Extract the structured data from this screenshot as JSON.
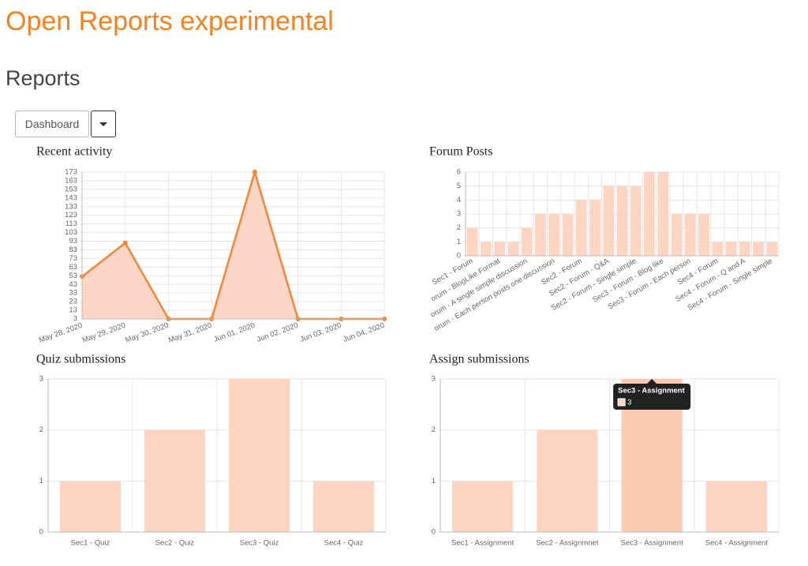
{
  "header": {
    "title": "Open Reports experimental",
    "subtitle": "Reports"
  },
  "dropdown": {
    "label": "Dashboard"
  },
  "chart_data": [
    {
      "type": "line",
      "title": "Recent activity",
      "categories": [
        "May 28, 2020",
        "May 29, 2020",
        "May 30, 2020",
        "May 31, 2020",
        "Jun 01, 2020",
        "Jun 02, 2020",
        "Jun 03, 2020",
        "Jun 04, 2020"
      ],
      "values": [
        52,
        91,
        3,
        3,
        173,
        3,
        3,
        3
      ],
      "color": "#f58536",
      "fill": "#fbd0bd",
      "ylim": [
        3,
        173
      ],
      "yticks": [
        3,
        13,
        23,
        33,
        43,
        53,
        63,
        73,
        83,
        93,
        103,
        113,
        123,
        133,
        143,
        153,
        163,
        173
      ],
      "grid": true
    },
    {
      "type": "bar",
      "title": "Forum Posts",
      "categories": [
        "Sec1 - Forum",
        null,
        "orum - BlogLike Format",
        null,
        "orum - A single simple discussion",
        null,
        "orum - Each person posts one discussion",
        null,
        "Sec2 - Forum",
        null,
        "Sec2 - Forum - Q&A",
        null,
        "Sec2 - Forum - Single simple",
        null,
        "Sec3 - Forum - Blog like",
        null,
        "Sec3 - Forum - Each person",
        null,
        "Sec4 - Forum",
        null,
        "Sec4 - Forum - Q and A",
        null,
        "Sec4 - Forum - Single simple"
      ],
      "values": [
        2,
        1,
        1,
        1,
        2,
        3,
        3,
        3,
        4,
        4,
        5,
        5,
        5,
        6,
        6,
        3,
        3,
        3,
        1,
        1,
        1,
        1,
        1
      ],
      "color": "#fdd5c2",
      "ylim": [
        0,
        6
      ],
      "yticks": [
        0,
        1,
        2,
        3,
        4,
        5,
        6
      ],
      "grid": true
    },
    {
      "type": "bar",
      "title": "Quiz submissions",
      "categories": [
        "Sec1 - Quiz",
        "Sec2 - Quiz",
        "Sec3 - Quiz",
        "Sec4 - Quiz"
      ],
      "values": [
        1,
        2,
        3,
        1
      ],
      "color": "#fdd5c2",
      "ylim": [
        0,
        3
      ],
      "yticks": [
        0,
        1,
        2,
        3
      ],
      "grid": true
    },
    {
      "type": "bar",
      "title": "Assign submissions",
      "categories": [
        "Sec1 - Assignment",
        "Sec2 - Assignmnet",
        "Sec3 - Assignment",
        "Sec4 - Assignment"
      ],
      "values": [
        1,
        2,
        3,
        1
      ],
      "color": "#fdd5c2",
      "ylim": [
        0,
        3
      ],
      "yticks": [
        0,
        1,
        2,
        3
      ],
      "grid": true,
      "tooltip": {
        "title": "Sec3 - Assignment",
        "value": 3
      }
    }
  ]
}
